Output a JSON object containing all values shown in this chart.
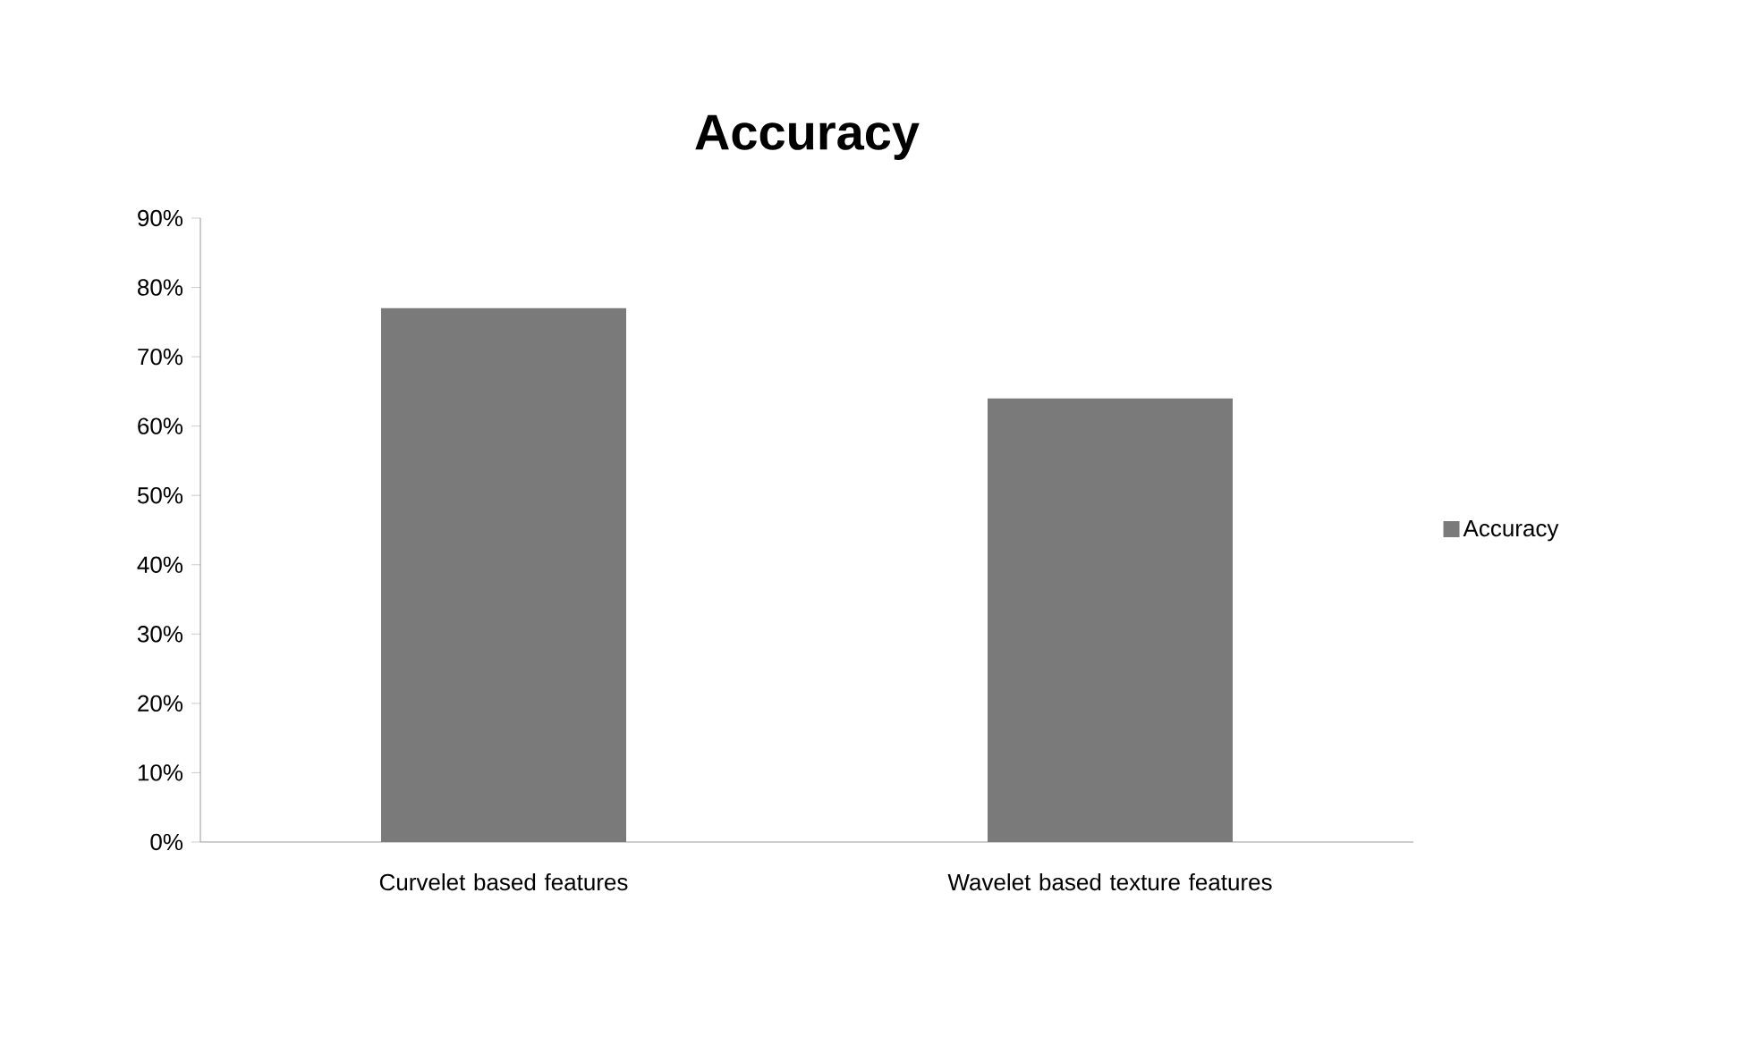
{
  "chart_data": {
    "type": "bar",
    "title": "Accuracy",
    "categories": [
      "Curvelet based features",
      "Wavelet based texture features"
    ],
    "series": [
      {
        "name": "Accuracy",
        "color": "#7a7a7a",
        "values": [
          77,
          64
        ]
      }
    ],
    "ylim": [
      0,
      90
    ],
    "yticks": [
      {
        "value": 0,
        "label": "0%"
      },
      {
        "value": 10,
        "label": "10%"
      },
      {
        "value": 20,
        "label": "20%"
      },
      {
        "value": 30,
        "label": "30%"
      },
      {
        "value": 40,
        "label": "40%"
      },
      {
        "value": 50,
        "label": "50%"
      },
      {
        "value": 60,
        "label": "60%"
      },
      {
        "value": 70,
        "label": "70%"
      },
      {
        "value": 80,
        "label": "80%"
      },
      {
        "value": 90,
        "label": "90%"
      }
    ],
    "legend": "right",
    "grid": false
  }
}
